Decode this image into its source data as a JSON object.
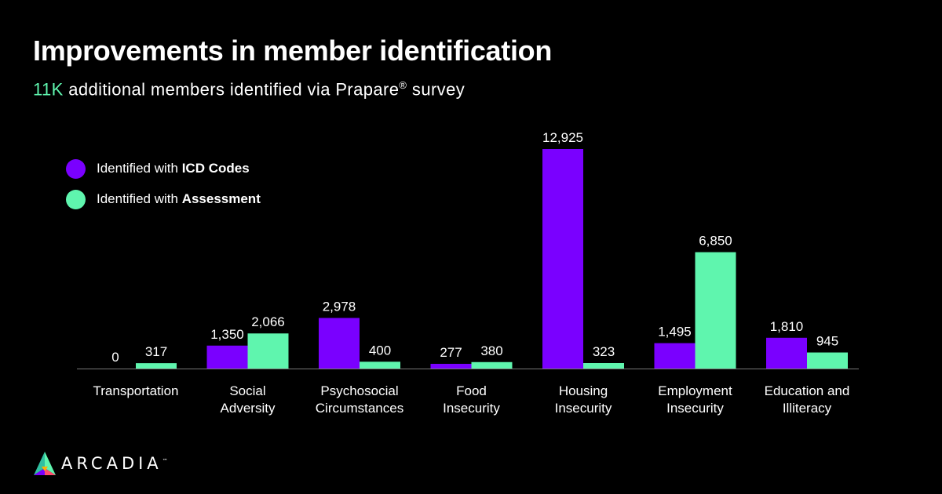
{
  "header": {
    "title": "Improvements in member identification",
    "subtitle_highlight": "11K",
    "subtitle_rest": " additional members identified via Prapare",
    "subtitle_mark": "®",
    "subtitle_end": " survey"
  },
  "legend": {
    "icd_prefix": "Identified with ",
    "icd_bold": "ICD Codes",
    "assessment_prefix": "Identified with ",
    "assessment_bold": "Assessment"
  },
  "colors": {
    "icd": "#7a00ff",
    "assessment": "#5ff5ae",
    "highlight": "#5ff5ae",
    "axis": "#777777"
  },
  "chart_data": {
    "type": "bar",
    "title": "Improvements in member identification",
    "categories": [
      [
        "Transportation"
      ],
      [
        "Social",
        "Adversity"
      ],
      [
        "Psychosocial",
        "Circumstances"
      ],
      [
        "Food",
        "Insecurity"
      ],
      [
        "Housing",
        "Insecurity"
      ],
      [
        "Employment",
        "Insecurity"
      ],
      [
        "Education and",
        "Illiteracy"
      ]
    ],
    "series": [
      {
        "name": "Identified with ICD Codes",
        "values": [
          0,
          1350,
          2978,
          277,
          12925,
          1495,
          1810
        ],
        "labels": [
          "0",
          "1,350",
          "2,978",
          "277",
          "12,925",
          "1,495",
          "1,810"
        ]
      },
      {
        "name": "Identified with Assessment",
        "values": [
          317,
          2066,
          400,
          380,
          323,
          6850,
          945
        ],
        "labels": [
          "317",
          "2,066",
          "400",
          "380",
          "323",
          "6,850",
          "945"
        ]
      }
    ],
    "ylim": [
      0,
      12925
    ],
    "xlabel": "",
    "ylabel": "",
    "grid": false,
    "legend_position": "top-left"
  },
  "brand": {
    "name": "ARCADIA",
    "trademark": "™"
  }
}
